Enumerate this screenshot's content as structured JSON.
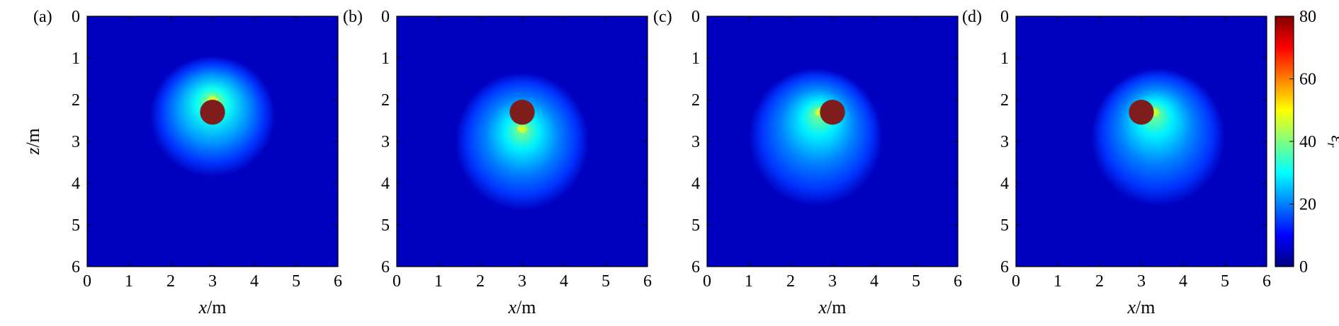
{
  "chart_data": [
    {
      "type": "heatmap",
      "panel_label": "(a)",
      "xlabel_var": "x",
      "xlabel_unit": "/m",
      "ylabel_var": "z",
      "ylabel_unit": "/m",
      "xlim": [
        0,
        6
      ],
      "ylim": [
        0,
        6
      ],
      "y_inverted": true,
      "xticks": [
        "0",
        "1",
        "2",
        "3",
        "4",
        "5",
        "6"
      ],
      "yticks": [
        "0",
        "1",
        "2",
        "3",
        "4",
        "5",
        "6"
      ],
      "target": {
        "x": 3.0,
        "z": 2.3,
        "radius": 0.3,
        "value": 80
      },
      "halo": {
        "x": 3.0,
        "z": 2.4,
        "rx": 1.5,
        "rz": 1.45,
        "peak": 35,
        "hot_x": 3.0,
        "hot_z": 2.0
      },
      "background_value": 5
    },
    {
      "type": "heatmap",
      "panel_label": "(b)",
      "xlabel_var": "x",
      "xlabel_unit": "/m",
      "xlim": [
        0,
        6
      ],
      "ylim": [
        0,
        6
      ],
      "y_inverted": true,
      "xticks": [
        "0",
        "1",
        "2",
        "3",
        "4",
        "5",
        "6"
      ],
      "yticks": [
        "0",
        "1",
        "2",
        "3",
        "4",
        "5",
        "6"
      ],
      "target": {
        "x": 3.0,
        "z": 2.3,
        "radius": 0.3,
        "value": 80
      },
      "halo": {
        "x": 3.0,
        "z": 3.0,
        "rx": 1.6,
        "rz": 1.65,
        "peak": 33,
        "hot_x": 3.0,
        "hot_z": 2.7
      },
      "background_value": 5
    },
    {
      "type": "heatmap",
      "panel_label": "(c)",
      "xlabel_var": "x",
      "xlabel_unit": "/m",
      "xlim": [
        0,
        6
      ],
      "ylim": [
        0,
        6
      ],
      "y_inverted": true,
      "xticks": [
        "0",
        "1",
        "2",
        "3",
        "4",
        "5",
        "6"
      ],
      "yticks": [
        "0",
        "1",
        "2",
        "3",
        "4",
        "5",
        "6"
      ],
      "target": {
        "x": 3.0,
        "z": 2.3,
        "radius": 0.3,
        "value": 80
      },
      "halo": {
        "x": 2.6,
        "z": 2.9,
        "rx": 1.6,
        "rz": 1.65,
        "peak": 33,
        "hot_x": 2.7,
        "hot_z": 2.3
      },
      "background_value": 5
    },
    {
      "type": "heatmap",
      "panel_label": "(d)",
      "xlabel_var": "x",
      "xlabel_unit": "/m",
      "xlim": [
        0,
        6
      ],
      "ylim": [
        0,
        6
      ],
      "y_inverted": true,
      "xticks": [
        "0",
        "1",
        "2",
        "3",
        "4",
        "5",
        "6"
      ],
      "yticks": [
        "0",
        "1",
        "2",
        "3",
        "4",
        "5",
        "6"
      ],
      "target": {
        "x": 3.0,
        "z": 2.3,
        "radius": 0.3,
        "value": 80
      },
      "halo": {
        "x": 3.4,
        "z": 2.9,
        "rx": 1.6,
        "rz": 1.65,
        "peak": 33,
        "hot_x": 3.3,
        "hot_z": 2.3
      },
      "background_value": 5
    }
  ],
  "colorbar": {
    "label": "ε",
    "label_subscript": "r",
    "min": 0,
    "max": 80,
    "ticks": [
      "0",
      "20",
      "40",
      "60",
      "80"
    ],
    "colormap": "jet",
    "colors": [
      "#000080",
      "#0000ff",
      "#0080ff",
      "#00ffff",
      "#80ff80",
      "#ffff00",
      "#ff8000",
      "#ff0000",
      "#800000"
    ]
  },
  "palette": {
    "background_field": "#1a3a8f",
    "target": "#7f1d1d"
  }
}
